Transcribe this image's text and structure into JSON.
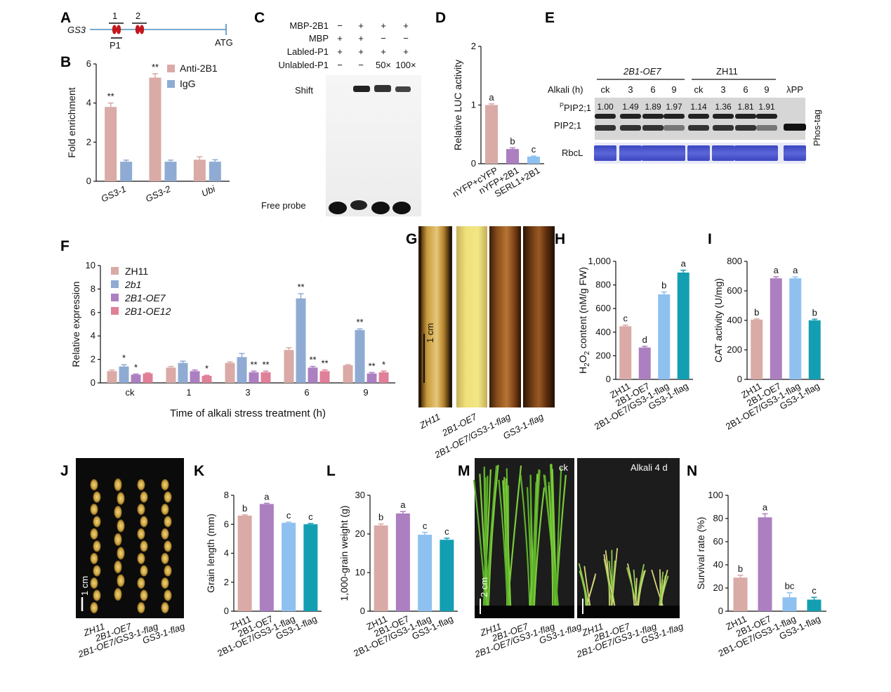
{
  "colors": {
    "pink": "#d9aaa6",
    "blue": "#8fabd3",
    "purple": "#ac7fc1",
    "rose": "#e07f98",
    "lightblue": "#8ec1f0",
    "teal": "#149eb2",
    "bar_err": "#555555"
  },
  "panels": {
    "A": "A",
    "B": "B",
    "C": "C",
    "D": "D",
    "E": "E",
    "F": "F",
    "G": "G",
    "H": "H",
    "I": "I",
    "J": "J",
    "K": "K",
    "L": "L",
    "M": "M",
    "N": "N"
  },
  "panel_a": {
    "gene": "GS3",
    "site1": "1",
    "site2": "2",
    "probe": "P1",
    "atg": "ATG"
  },
  "panel_c": {
    "rows": [
      {
        "label": "MBP-2B1",
        "vals": [
          "−",
          "+",
          "+",
          "+"
        ]
      },
      {
        "label": "MBP",
        "vals": [
          "+",
          "+",
          "−",
          "−"
        ]
      },
      {
        "label": "Labled-P1",
        "vals": [
          "+",
          "+",
          "+",
          "+"
        ]
      },
      {
        "label": "Unlabled-P1",
        "vals": [
          "−",
          "−",
          "50×",
          "100×"
        ]
      }
    ],
    "shift": "Shift",
    "free_probe": "Free probe"
  },
  "panel_e": {
    "group1": "2B1-OE7",
    "group2": "ZH11",
    "alkali_label": "Alkali (h)",
    "lanes": [
      "ck",
      "3",
      "6",
      "9",
      "ck",
      "3",
      "6",
      "9",
      "λPP"
    ],
    "ratios": [
      "1.00",
      "1.49",
      "1.89",
      "1.97",
      "1.14",
      "1.36",
      "1.81",
      "1.91"
    ],
    "row1_sup": "P",
    "row1": "PIP2;1",
    "row2": "PIP2;1",
    "row3": "RbcL",
    "side": "Phos-tag"
  },
  "panel_g": {
    "lines": [
      "ZH11",
      "2B1-OE7",
      "2B1-OE7/GS3-1-flag",
      "GS3-1-flag"
    ],
    "scale": "1 cm"
  },
  "panel_j": {
    "scale": "1 cm"
  },
  "panel_m": {
    "left": "ck",
    "right": "Alkali 4 d",
    "scale": "2 cm"
  },
  "chart_data": [
    {
      "id": "B",
      "type": "bar",
      "categories": [
        "GS3-1",
        "GS3-2",
        "Ubi"
      ],
      "series": [
        {
          "name": "Anti-2B1",
          "values": [
            3.8,
            5.3,
            1.1
          ],
          "err": [
            0.2,
            0.2,
            0.15
          ]
        },
        {
          "name": "IgG",
          "values": [
            1.0,
            1.0,
            1.0
          ],
          "err": [
            0.08,
            0.08,
            0.1
          ]
        }
      ],
      "labels": [
        [
          "**",
          ""
        ],
        [
          "**",
          ""
        ],
        [
          "",
          ""
        ]
      ],
      "ylabel": "Fold enrichment",
      "ylim": [
        0,
        6
      ],
      "yticks": [
        "0",
        "2",
        "4",
        "6"
      ]
    },
    {
      "id": "D",
      "type": "bar",
      "categories": [
        "nYFP+cYFP",
        "nYFP+2B1",
        "SERL1+2B1"
      ],
      "values": [
        1.0,
        0.25,
        0.12
      ],
      "err": [
        0.02,
        0.02,
        0.01
      ],
      "labels": [
        "a",
        "b",
        "c"
      ],
      "ylabel": "Relative LUC activity",
      "ylim": [
        0,
        2
      ],
      "yticks": [
        "0",
        "1",
        "2"
      ]
    },
    {
      "id": "F",
      "type": "bar",
      "categories": [
        "ck",
        "1",
        "3",
        "6",
        "9"
      ],
      "series": [
        {
          "name": "ZH11",
          "values": [
            1.0,
            1.3,
            1.7,
            2.8,
            1.5
          ],
          "err": [
            0.1,
            0.1,
            0.08,
            0.2,
            0.05
          ]
        },
        {
          "name": "2b1",
          "values": [
            1.4,
            1.7,
            2.2,
            7.2,
            4.5
          ],
          "err": [
            0.15,
            0.15,
            0.3,
            0.4,
            0.1
          ]
        },
        {
          "name": "2B1-OE7",
          "values": [
            0.7,
            1.0,
            0.9,
            1.3,
            0.8
          ],
          "err": [
            0.05,
            0.1,
            0.1,
            0.1,
            0.08
          ]
        },
        {
          "name": "2B1-OE12",
          "values": [
            0.8,
            0.6,
            0.9,
            1.0,
            0.9
          ],
          "err": [
            0.05,
            0.05,
            0.1,
            0.1,
            0.1
          ]
        }
      ],
      "labels": [
        [
          "",
          "*",
          "*",
          ""
        ],
        [
          "",
          "",
          "",
          "*"
        ],
        [
          "",
          "",
          "**",
          "**"
        ],
        [
          "",
          "**",
          "**",
          "**"
        ],
        [
          "",
          "**",
          "**",
          "*"
        ]
      ],
      "xlabel": "Time of alkali stress treatment (h)",
      "ylabel": "Relative expression",
      "ylim": [
        0,
        10
      ],
      "yticks": [
        "0",
        "2",
        "4",
        "6",
        "8",
        "10"
      ]
    },
    {
      "id": "H",
      "type": "bar",
      "categories": [
        "ZH11",
        "2B1-OE7",
        "2B1-OE7/GS3-1-flag",
        "GS3-1-flag"
      ],
      "values": [
        450,
        270,
        720,
        905
      ],
      "err": [
        10,
        10,
        20,
        20
      ],
      "labels": [
        "c",
        "d",
        "b",
        "a"
      ],
      "ylabel_main": "H",
      "ylabel_sub": "2",
      "ylabel_rest": "O",
      "ylabel_sub2": "2",
      "ylabel_tail": " content (nM/g FW)",
      "ylim": [
        0,
        1000
      ],
      "yticks": [
        "0",
        "200",
        "400",
        "600",
        "800",
        "1,000"
      ]
    },
    {
      "id": "I",
      "type": "bar",
      "categories": [
        "ZH11",
        "2B1-OE7",
        "2B1-OE7/GS3-1-flag",
        "GS3-1-flag"
      ],
      "values": [
        405,
        685,
        685,
        400
      ],
      "err": [
        5,
        10,
        10,
        8
      ],
      "labels": [
        "b",
        "a",
        "a",
        "b"
      ],
      "ylabel": "CAT activity (U/mg)",
      "ylim": [
        0,
        800
      ],
      "yticks": [
        "0",
        "200",
        "400",
        "600",
        "800"
      ]
    },
    {
      "id": "K",
      "type": "bar",
      "categories": [
        "ZH11",
        "2B1-OE7",
        "2B1-OE7/GS3-1-flag",
        "GS3-1-flag"
      ],
      "values": [
        6.6,
        7.4,
        6.1,
        6.0
      ],
      "err": [
        0.05,
        0.05,
        0.05,
        0.05
      ],
      "labels": [
        "b",
        "a",
        "c",
        "c"
      ],
      "ylabel": "Grain length (mm)",
      "ylim": [
        0,
        8
      ],
      "yticks": [
        "0",
        "2",
        "4",
        "6",
        "8"
      ]
    },
    {
      "id": "L",
      "type": "bar",
      "categories": [
        "ZH11",
        "2B1-OE7",
        "2B1-OE7/GS3-1-flag",
        "GS3-1-flag"
      ],
      "values": [
        22.2,
        25.3,
        19.8,
        18.5
      ],
      "err": [
        0.4,
        0.5,
        0.6,
        0.4
      ],
      "labels": [
        "b",
        "a",
        "c",
        "c"
      ],
      "ylabel": "1,000-grain weight (g)",
      "ylim": [
        0,
        30
      ],
      "yticks": [
        "0",
        "10",
        "20",
        "30"
      ]
    },
    {
      "id": "N",
      "type": "bar",
      "categories": [
        "ZH11",
        "2B1-OE7",
        "2B1-OE7/GS3-1-flag",
        "GS3-1-flag"
      ],
      "values": [
        29,
        81,
        12,
        10
      ],
      "err": [
        2,
        3,
        4,
        2
      ],
      "labels": [
        "b",
        "a",
        "bc",
        "c"
      ],
      "ylabel": "Survival rate (%)",
      "ylim": [
        0,
        100
      ],
      "yticks": [
        "0",
        "20",
        "40",
        "60",
        "80",
        "100"
      ]
    }
  ]
}
